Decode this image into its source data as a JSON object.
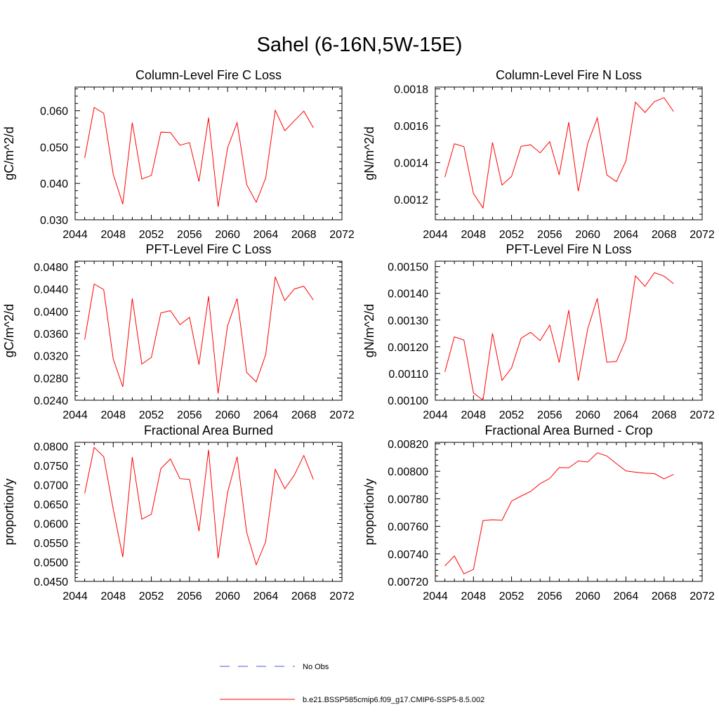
{
  "title": "Sahel (6-16N,5W-15E)",
  "colors": {
    "model_line": "#ff0000",
    "obs_line": "#4a5bc8",
    "axis": "#000000"
  },
  "legend": {
    "obs_label": "No Obs",
    "model_label": "b.e21.BSSP585cmip6.f09_g17.CMIP6-SSP5-8.5.002"
  },
  "chart_data": [
    {
      "type": "line",
      "title": "Column-Level Fire C Loss",
      "ylabel": "gC/m^2/d",
      "xlim": [
        2044,
        2072
      ],
      "ylim": [
        0.03,
        0.0665
      ],
      "xticks": [
        2044,
        2048,
        2052,
        2056,
        2060,
        2064,
        2068,
        2072
      ],
      "yticks": [
        0.03,
        0.04,
        0.05,
        0.06
      ],
      "ytick_labels": [
        "0.030",
        "0.040",
        "0.050",
        "0.060"
      ],
      "x": [
        2045,
        2046,
        2047,
        2048,
        2049,
        2050,
        2051,
        2052,
        2053,
        2054,
        2055,
        2056,
        2057,
        2058,
        2059,
        2060,
        2061,
        2062,
        2063,
        2064,
        2065,
        2066,
        2067,
        2068,
        2069
      ],
      "series": [
        {
          "values": [
            0.047,
            0.0609,
            0.0593,
            0.0425,
            0.0343,
            0.0567,
            0.0412,
            0.0422,
            0.0541,
            0.054,
            0.0505,
            0.0512,
            0.0405,
            0.0581,
            0.0336,
            0.0498,
            0.0567,
            0.0397,
            0.0348,
            0.0415,
            0.0601,
            0.0545,
            0.0572,
            0.0599,
            0.0553
          ]
        }
      ]
    },
    {
      "type": "line",
      "title": "Column-Level Fire N Loss",
      "ylabel": "gN/m^2/d",
      "xlim": [
        2044,
        2072
      ],
      "ylim": [
        0.00109,
        0.00181
      ],
      "xticks": [
        2044,
        2048,
        2052,
        2056,
        2060,
        2064,
        2068,
        2072
      ],
      "yticks": [
        0.0012,
        0.0014,
        0.0016,
        0.0018
      ],
      "ytick_labels": [
        "0.0012",
        "0.0014",
        "0.0016",
        "0.0018"
      ],
      "x": [
        2045,
        2046,
        2047,
        2048,
        2049,
        2050,
        2051,
        2052,
        2053,
        2054,
        2055,
        2056,
        2057,
        2058,
        2059,
        2060,
        2061,
        2062,
        2063,
        2064,
        2065,
        2066,
        2067,
        2068,
        2069
      ],
      "series": [
        {
          "values": [
            0.001322,
            0.001502,
            0.001487,
            0.001232,
            0.001154,
            0.00151,
            0.001278,
            0.001326,
            0.001489,
            0.001497,
            0.001453,
            0.001514,
            0.001334,
            0.001619,
            0.001245,
            0.001505,
            0.001643,
            0.001333,
            0.001297,
            0.001409,
            0.001728,
            0.001672,
            0.001731,
            0.001752,
            0.001677
          ]
        }
      ]
    },
    {
      "type": "line",
      "title": "PFT-Level Fire C Loss",
      "ylabel": "gC/m^2/d",
      "xlim": [
        2044,
        2072
      ],
      "ylim": [
        0.024,
        0.049
      ],
      "xticks": [
        2044,
        2048,
        2052,
        2056,
        2060,
        2064,
        2068,
        2072
      ],
      "yticks": [
        0.024,
        0.028,
        0.032,
        0.036,
        0.04,
        0.044,
        0.048
      ],
      "ytick_labels": [
        "0.0240",
        "0.0280",
        "0.0320",
        "0.0360",
        "0.0400",
        "0.0440",
        "0.0480"
      ],
      "x": [
        2045,
        2046,
        2047,
        2048,
        2049,
        2050,
        2051,
        2052,
        2053,
        2054,
        2055,
        2056,
        2057,
        2058,
        2059,
        2060,
        2061,
        2062,
        2063,
        2064,
        2065,
        2066,
        2067,
        2068,
        2069
      ],
      "series": [
        {
          "values": [
            0.0349,
            0.0449,
            0.0439,
            0.0314,
            0.0264,
            0.0423,
            0.0305,
            0.0317,
            0.0397,
            0.0401,
            0.0376,
            0.0389,
            0.0304,
            0.0427,
            0.0252,
            0.0374,
            0.0423,
            0.029,
            0.0273,
            0.0322,
            0.0462,
            0.0419,
            0.044,
            0.0445,
            0.042
          ]
        }
      ]
    },
    {
      "type": "line",
      "title": "PFT-Level Fire N Loss",
      "ylabel": "gN/m^2/d",
      "xlim": [
        2044,
        2072
      ],
      "ylim": [
        0.001,
        0.00152
      ],
      "xticks": [
        2044,
        2048,
        2052,
        2056,
        2060,
        2064,
        2068,
        2072
      ],
      "yticks": [
        0.001,
        0.0011,
        0.0012,
        0.0013,
        0.0014,
        0.0015
      ],
      "ytick_labels": [
        "0.00100",
        "0.00110",
        "0.00120",
        "0.00130",
        "0.00140",
        "0.00150"
      ],
      "x": [
        2045,
        2046,
        2047,
        2048,
        2049,
        2050,
        2051,
        2052,
        2053,
        2054,
        2055,
        2056,
        2057,
        2058,
        2059,
        2060,
        2061,
        2062,
        2063,
        2064,
        2065,
        2066,
        2067,
        2068,
        2069
      ],
      "series": [
        {
          "values": [
            0.001106,
            0.001237,
            0.001225,
            0.001027,
            0.001,
            0.00125,
            0.001074,
            0.001121,
            0.001232,
            0.001254,
            0.001223,
            0.001281,
            0.001141,
            0.001337,
            0.001073,
            0.001268,
            0.001381,
            0.001142,
            0.001145,
            0.001227,
            0.001465,
            0.001426,
            0.001477,
            0.001464,
            0.001436
          ]
        }
      ]
    },
    {
      "type": "line",
      "title": "Fractional Area Burned",
      "ylabel": "proportion/y",
      "xlim": [
        2044,
        2072
      ],
      "ylim": [
        0.045,
        0.081
      ],
      "xticks": [
        2044,
        2048,
        2052,
        2056,
        2060,
        2064,
        2068,
        2072
      ],
      "yticks": [
        0.045,
        0.05,
        0.055,
        0.06,
        0.065,
        0.07,
        0.075,
        0.08
      ],
      "ytick_labels": [
        "0.0450",
        "0.0500",
        "0.0550",
        "0.0600",
        "0.0650",
        "0.0700",
        "0.0750",
        "0.0800"
      ],
      "x": [
        2045,
        2046,
        2047,
        2048,
        2049,
        2050,
        2051,
        2052,
        2053,
        2054,
        2055,
        2056,
        2057,
        2058,
        2059,
        2060,
        2061,
        2062,
        2063,
        2064,
        2065,
        2066,
        2067,
        2068,
        2069
      ],
      "series": [
        {
          "values": [
            0.0678,
            0.0797,
            0.0773,
            0.0637,
            0.0513,
            0.0772,
            0.0611,
            0.0624,
            0.0742,
            0.0767,
            0.0716,
            0.0714,
            0.058,
            0.0791,
            0.051,
            0.068,
            0.0773,
            0.0577,
            0.0493,
            0.0553,
            0.074,
            0.069,
            0.0725,
            0.0776,
            0.0714
          ]
        }
      ]
    },
    {
      "type": "line",
      "title": "Fractional Area Burned - Crop",
      "ylabel": "proportion/y",
      "xlim": [
        2044,
        2072
      ],
      "ylim": [
        0.0072,
        0.00821
      ],
      "xticks": [
        2044,
        2048,
        2052,
        2056,
        2060,
        2064,
        2068,
        2072
      ],
      "yticks": [
        0.0072,
        0.0074,
        0.0076,
        0.0078,
        0.008,
        0.0082
      ],
      "ytick_labels": [
        "0.00720",
        "0.00740",
        "0.00760",
        "0.00780",
        "0.00800",
        "0.00820"
      ],
      "x": [
        2045,
        2046,
        2047,
        2048,
        2049,
        2050,
        2051,
        2052,
        2053,
        2054,
        2055,
        2056,
        2057,
        2058,
        2059,
        2060,
        2061,
        2062,
        2063,
        2064,
        2065,
        2066,
        2067,
        2068,
        2069
      ],
      "series": [
        {
          "values": [
            0.007312,
            0.007384,
            0.007255,
            0.007287,
            0.007642,
            0.007647,
            0.007644,
            0.007783,
            0.00782,
            0.007853,
            0.00791,
            0.007948,
            0.008027,
            0.008025,
            0.008075,
            0.008067,
            0.008134,
            0.008111,
            0.008055,
            0.008003,
            0.007993,
            0.007986,
            0.007983,
            0.007945,
            0.007977
          ]
        }
      ]
    }
  ]
}
